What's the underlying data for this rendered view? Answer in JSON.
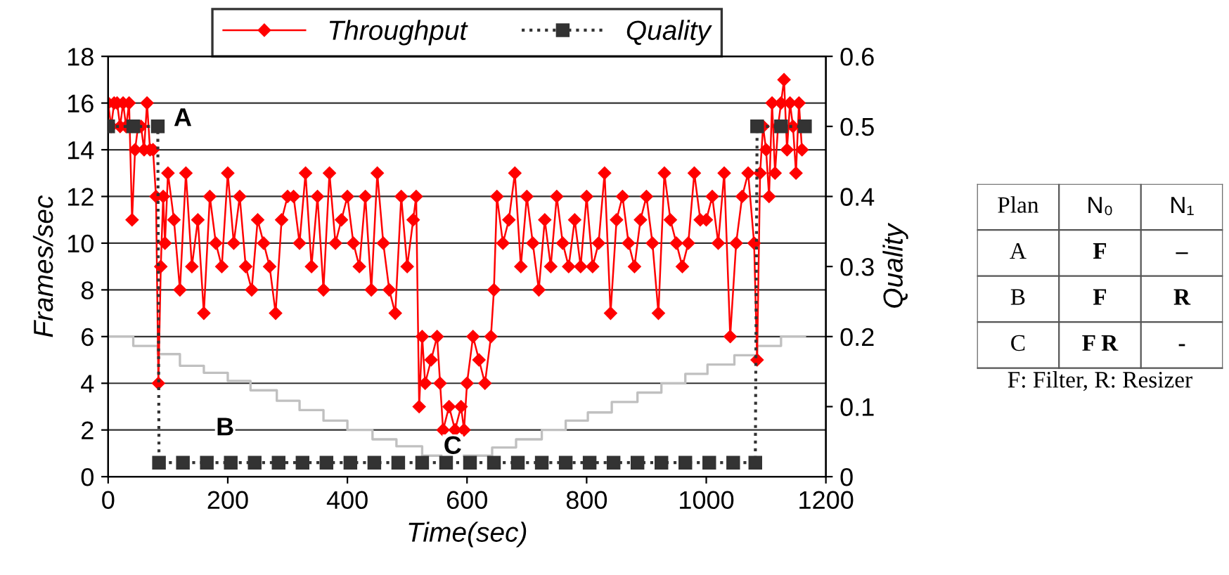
{
  "chart_data": [
    {
      "type": "line",
      "xlabel": "Time(sec)",
      "ylabel": "Frames/sec",
      "y2label": "Quality",
      "xlim": [
        0,
        1200
      ],
      "xticks": [
        0,
        200,
        400,
        600,
        800,
        1000,
        1200
      ],
      "ylim": [
        0,
        18
      ],
      "yticks": [
        0,
        2,
        4,
        6,
        8,
        10,
        12,
        14,
        16,
        18
      ],
      "y2lim": [
        0,
        0.6
      ],
      "y2ticks": [
        0,
        0.1,
        0.2,
        0.3,
        0.4,
        0.5,
        0.6
      ],
      "grid": "y",
      "legend": "top",
      "series": [
        {
          "type": "step",
          "color": "#c0c0c0",
          "marker": "none",
          "line_style": "solid",
          "x": [
            0,
            42,
            83,
            120,
            160,
            200,
            238,
            282,
            320,
            360,
            400,
            442,
            482,
            525,
            642,
            682,
            725,
            765,
            802,
            842,
            885,
            925,
            965,
            1002,
            1047,
            1085,
            1125,
            1165
          ],
          "values": [
            6,
            5.6,
            5.25,
            4.75,
            4.45,
            4.1,
            3.7,
            3.25,
            2.85,
            2.4,
            2.0,
            1.6,
            1.3,
            0.9,
            1.25,
            1.6,
            2.0,
            2.4,
            2.75,
            3.2,
            3.6,
            4.0,
            4.4,
            4.8,
            5.2,
            5.6,
            6.0,
            6.0
          ]
        },
        {
          "name": "Throughput",
          "color": "#ff0000",
          "marker": "diamond",
          "line_style": "solid",
          "x": [
            0,
            5,
            10,
            15,
            20,
            25,
            30,
            35,
            40,
            45,
            50,
            55,
            60,
            65,
            70,
            75,
            80,
            84,
            88,
            92,
            95,
            100,
            110,
            120,
            130,
            140,
            150,
            160,
            170,
            180,
            190,
            200,
            210,
            220,
            230,
            240,
            250,
            260,
            270,
            280,
            290,
            300,
            310,
            320,
            330,
            340,
            350,
            360,
            370,
            380,
            390,
            400,
            410,
            420,
            430,
            440,
            450,
            460,
            470,
            480,
            490,
            500,
            510,
            515,
            520,
            525,
            530,
            540,
            550,
            555,
            560,
            570,
            580,
            590,
            595,
            600,
            610,
            620,
            630,
            640,
            645,
            650,
            660,
            670,
            680,
            690,
            700,
            710,
            720,
            730,
            740,
            750,
            760,
            770,
            780,
            790,
            800,
            810,
            820,
            830,
            840,
            850,
            860,
            870,
            880,
            890,
            900,
            910,
            920,
            930,
            940,
            950,
            960,
            970,
            980,
            990,
            1000,
            1010,
            1020,
            1030,
            1040,
            1050,
            1060,
            1070,
            1080,
            1085,
            1090,
            1095,
            1100,
            1105,
            1110,
            1115,
            1120,
            1125,
            1130,
            1135,
            1140,
            1145,
            1150,
            1155,
            1160
          ],
          "values": [
            16,
            15,
            16,
            16,
            15,
            16,
            15,
            16,
            11,
            14,
            15,
            15,
            14,
            16,
            14,
            14,
            12,
            4,
            9,
            12,
            10,
            13,
            11,
            8,
            13,
            9,
            11,
            7,
            12,
            10,
            9,
            13,
            10,
            12,
            9,
            8,
            11,
            10,
            9,
            7,
            11,
            12,
            12,
            10,
            13,
            9,
            12,
            8,
            13,
            10,
            11,
            12,
            10,
            9,
            12,
            8,
            13,
            10,
            8,
            7,
            12,
            9,
            11,
            12,
            3,
            6,
            4,
            5,
            6,
            4,
            2,
            3,
            2,
            3,
            2,
            4,
            6,
            5,
            4,
            6,
            8,
            12,
            10,
            11,
            13,
            9,
            12,
            10,
            8,
            11,
            9,
            12,
            10,
            9,
            11,
            9,
            12,
            9,
            10,
            13,
            7,
            11,
            12,
            10,
            9,
            11,
            12,
            10,
            7,
            13,
            11,
            10,
            9,
            10,
            13,
            11,
            11,
            12,
            10,
            13,
            6,
            10,
            12,
            13,
            10,
            5,
            13,
            15,
            14,
            12,
            16,
            13,
            15,
            16,
            17,
            14,
            16,
            15,
            13,
            16,
            14
          ]
        },
        {
          "name": "Quality",
          "axis": "y2",
          "color": "#333333",
          "marker": "square",
          "line_style": "dotted",
          "x": [
            0,
            42,
            83,
            85,
            125,
            165,
            205,
            245,
            285,
            325,
            365,
            405,
            445,
            485,
            525,
            565,
            605,
            645,
            685,
            725,
            765,
            805,
            845,
            885,
            925,
            965,
            1005,
            1045,
            1082,
            1085,
            1125,
            1165
          ],
          "values": [
            0.5,
            0.5,
            0.5,
            0.02,
            0.02,
            0.02,
            0.02,
            0.02,
            0.02,
            0.02,
            0.02,
            0.02,
            0.02,
            0.02,
            0.02,
            0.02,
            0.02,
            0.02,
            0.02,
            0.02,
            0.02,
            0.02,
            0.02,
            0.02,
            0.02,
            0.02,
            0.02,
            0.02,
            0.02,
            0.5,
            0.5,
            0.5
          ]
        }
      ],
      "annotations": [
        "A",
        "B",
        "C"
      ]
    },
    {
      "type": "other",
      "categories": [
        "Plan",
        "N₀",
        "N₁"
      ],
      "cell_labels": [
        [
          "A",
          "F",
          "–"
        ],
        [
          "B",
          "F",
          "R"
        ],
        [
          "C",
          "F R",
          "-"
        ]
      ],
      "annotations": [
        "F: Filter, R: Resizer"
      ]
    }
  ]
}
